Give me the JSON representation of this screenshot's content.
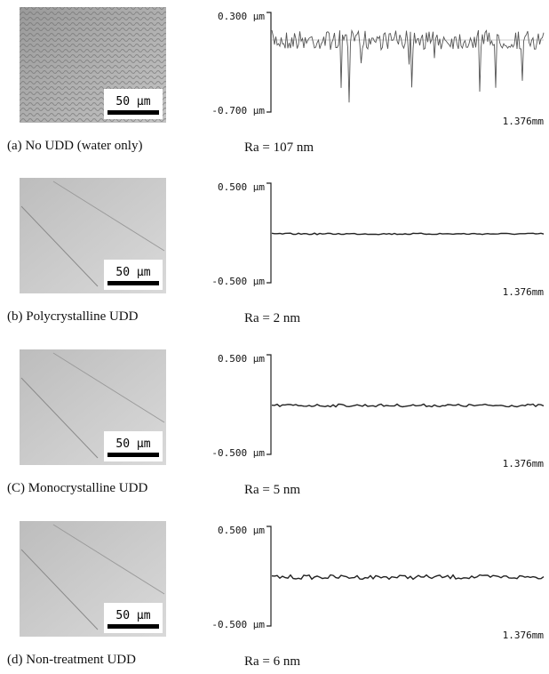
{
  "panels": [
    {
      "caption": "(a) No UDD (water only)",
      "scale_label": "50 μm",
      "y_top": "0.300 μm",
      "y_bottom": "-0.700 μm",
      "x_end": "1.376mm",
      "ra": "Ra = 107 nm"
    },
    {
      "caption": "(b) Polycrystalline UDD",
      "scale_label": "50 μm",
      "y_top": "0.500 μm",
      "y_bottom": "-0.500 μm",
      "x_end": "1.376mm",
      "ra": "Ra = 2 nm"
    },
    {
      "caption": "(C) Monocrystalline UDD",
      "scale_label": "50 μm",
      "y_top": "0.500 μm",
      "y_bottom": "-0.500 μm",
      "x_end": "1.376mm",
      "ra": "Ra = 5 nm"
    },
    {
      "caption": "(d) Non-treatment UDD",
      "scale_label": "50 μm",
      "y_top": "0.500 μm",
      "y_bottom": "-0.500 μm",
      "x_end": "1.376mm",
      "ra": "Ra = 6 nm"
    }
  ]
}
